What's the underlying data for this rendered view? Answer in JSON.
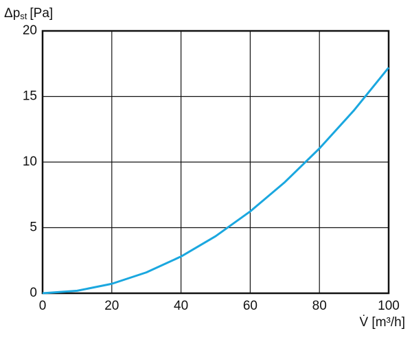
{
  "chart_data": {
    "type": "line",
    "y_label": "Δp",
    "y_label_subscript": "st",
    "y_label_unit": "[Pa]",
    "x_label": "V̇ [m³/h]",
    "x": [
      0,
      10,
      20,
      30,
      40,
      50,
      60,
      70,
      80,
      90,
      100
    ],
    "series": [
      {
        "color": "#1aa7df",
        "values": [
          0,
          0.19,
          0.72,
          1.59,
          2.8,
          4.35,
          6.24,
          8.47,
          11.04,
          13.95,
          17.2
        ]
      }
    ],
    "xlim": [
      0,
      100
    ],
    "xticks": [
      0,
      20,
      40,
      60,
      80,
      100
    ],
    "ylim": [
      0,
      20
    ],
    "yticks": [
      0,
      5,
      10,
      15,
      20
    ],
    "grid": true
  }
}
